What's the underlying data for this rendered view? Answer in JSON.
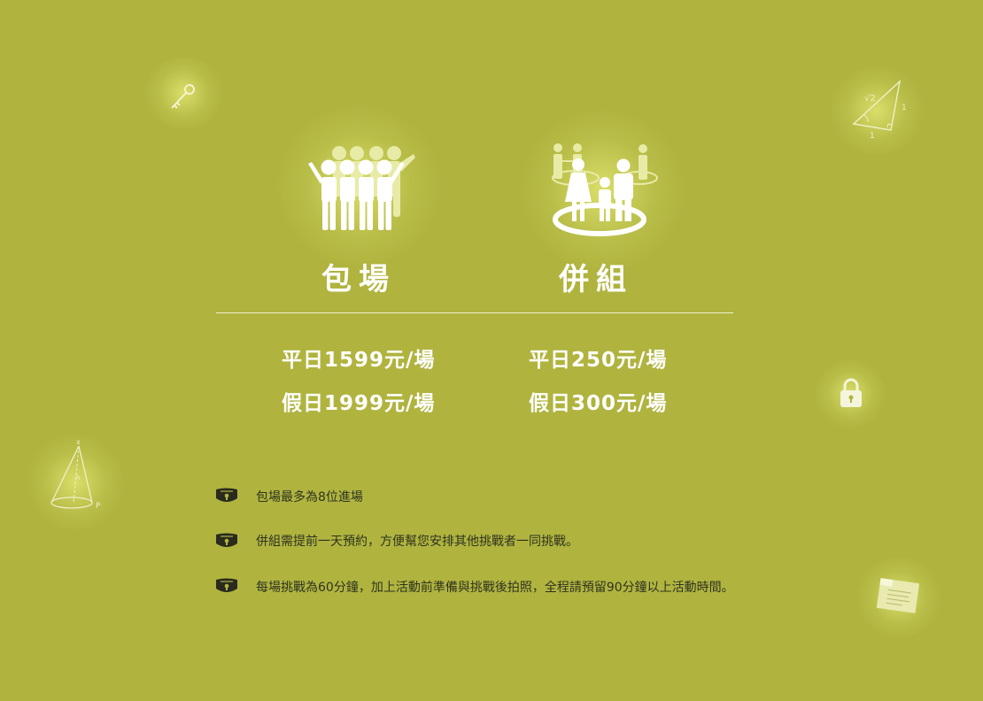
{
  "plans": [
    {
      "title": "包場",
      "weekday": "平日1599元/場",
      "holiday": "假日1999元/場",
      "icon": "group-people-icon"
    },
    {
      "title": "併組",
      "weekday": "平日250元/場",
      "holiday": "假日300元/場",
      "icon": "family-group-icon"
    }
  ],
  "notes": [
    "包場最多為8位進場",
    "併組需提前一天預約，方便幫您安排其他挑戰者一同挑戰。",
    "每場挑戰為60分鐘，加上活動前準備與挑戰後拍照，全程請預留90分鐘以上活動時間。"
  ],
  "colors": {
    "background": "#b0b43f",
    "text_light": "#ffffff",
    "text_dark": "#2e3320",
    "icon_dark": "#2a2a1e"
  }
}
